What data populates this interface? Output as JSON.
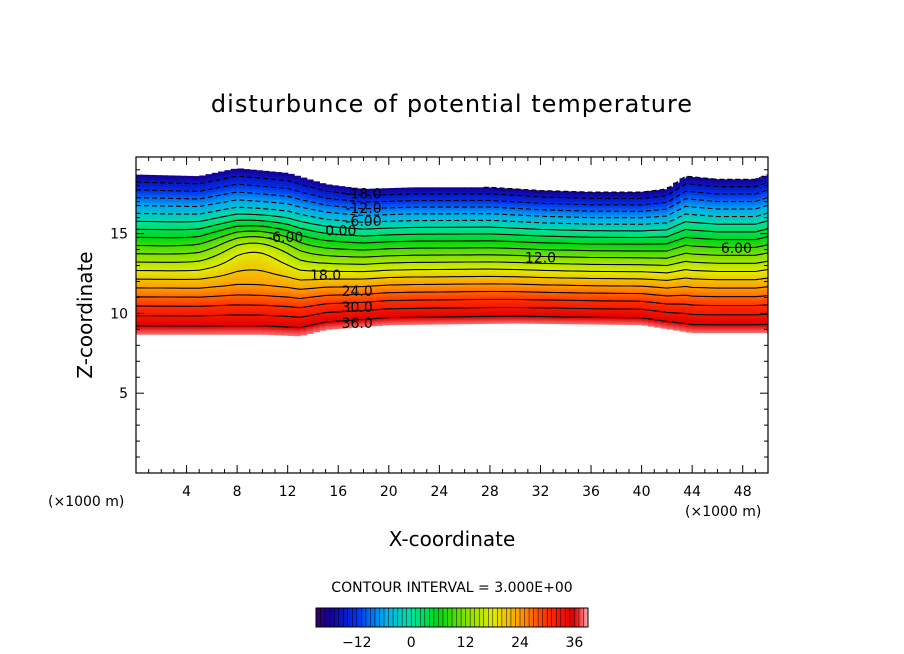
{
  "chart_data": {
    "type": "contour",
    "title": "disturbunce of potential temperature",
    "xlabel": "X-coordinate",
    "ylabel": "Z-coordinate",
    "x_unit": "(×1000 m)",
    "z_unit": "(×1000 m)",
    "xlim": [
      0,
      50
    ],
    "ylim": [
      0,
      19.8
    ],
    "x_ticks": [
      4,
      8,
      12,
      16,
      20,
      24,
      28,
      32,
      36,
      40,
      44,
      48
    ],
    "y_ticks": [
      5,
      10,
      15
    ],
    "contour_interval_text": "CONTOUR INTERVAL = 3.000E+00",
    "contour_interval": 3.0,
    "value_range": [
      -21,
      39
    ],
    "colorbar_ticks": [
      -12,
      0,
      12,
      24,
      36
    ],
    "contour_labels": [
      {
        "text": "-18.0",
        "x": 18.0,
        "z": 17.5
      },
      {
        "text": "-12.0",
        "x": 18.0,
        "z": 16.6
      },
      {
        "text": "-6.00",
        "x": 18.0,
        "z": 15.8
      },
      {
        "text": "-6.00",
        "x": 11.8,
        "z": 14.8
      },
      {
        "text": "0.00",
        "x": 16.2,
        "z": 15.2
      },
      {
        "text": "12.0",
        "x": 32.0,
        "z": 13.5
      },
      {
        "text": "6.00",
        "x": 47.5,
        "z": 14.1
      },
      {
        "text": "18.0",
        "x": 15.0,
        "z": 12.4
      },
      {
        "text": "24.0",
        "x": 17.5,
        "z": 11.4
      },
      {
        "text": "30.0",
        "x": 17.5,
        "z": 10.4
      },
      {
        "text": "36.0",
        "x": 17.5,
        "z": 9.4
      }
    ],
    "grid": false,
    "legend": "colorbar bottom-center"
  }
}
